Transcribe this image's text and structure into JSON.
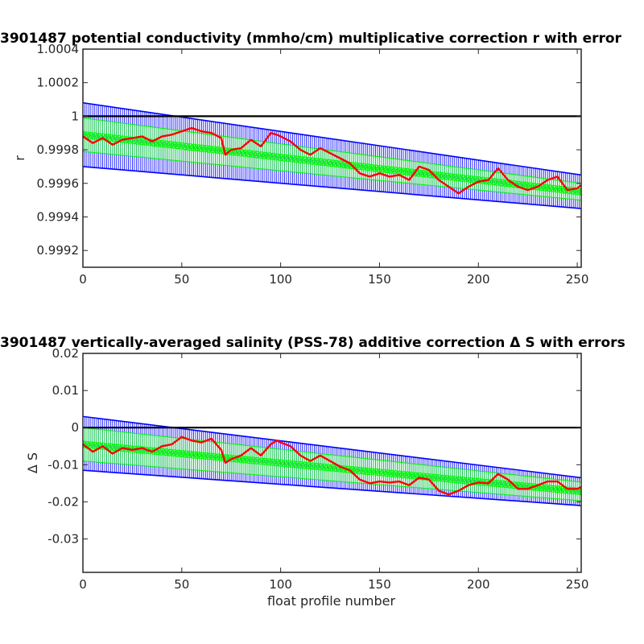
{
  "chart_data": [
    {
      "type": "line",
      "title": "3901487 potential conductivity (mmho/cm) multiplicative correction r with error",
      "xlabel": "",
      "ylabel": "r",
      "xlim": [
        0,
        252
      ],
      "ylim": [
        0.9991,
        1.0004
      ],
      "xticks": [
        0,
        50,
        100,
        150,
        200,
        250
      ],
      "xtick_labels": [
        "0",
        "50",
        "100",
        "150",
        "200",
        "250"
      ],
      "yticks": [
        0.9992,
        0.9994,
        0.9996,
        0.9998,
        1.0,
        1.0002,
        1.0004
      ],
      "ytick_labels": [
        "0.9992",
        "0.9994",
        "0.9996",
        "0.9998",
        "1",
        "1.0002",
        "1.0004"
      ],
      "reference_line": 1.0,
      "series": [
        {
          "role": "blue-error-band",
          "color": "#0000ff",
          "x_start": 0,
          "x_end": 252,
          "upper": [
            1.00008,
            0.99965
          ],
          "lower": [
            0.9997,
            0.99945
          ]
        },
        {
          "role": "green-fit-with-error",
          "color": "#00ff00",
          "x_start": 0,
          "x_end": 252,
          "center": [
            0.99989,
            0.99955
          ],
          "halfwidth": [
            0.0001,
            5e-05
          ]
        },
        {
          "role": "red-profile-correction",
          "color": "#ff0000",
          "x": [
            0,
            5,
            10,
            15,
            20,
            25,
            30,
            35,
            40,
            45,
            50,
            55,
            60,
            65,
            70,
            72,
            75,
            80,
            85,
            90,
            95,
            98,
            100,
            105,
            110,
            115,
            120,
            125,
            130,
            135,
            140,
            145,
            150,
            155,
            160,
            165,
            170,
            175,
            180,
            185,
            190,
            195,
            200,
            205,
            210,
            215,
            220,
            225,
            230,
            235,
            240,
            245,
            250,
            252
          ],
          "y": [
            0.99988,
            0.99984,
            0.99987,
            0.99983,
            0.99986,
            0.99987,
            0.99988,
            0.99985,
            0.99988,
            0.99989,
            0.99991,
            0.99993,
            0.99991,
            0.9999,
            0.99987,
            0.99977,
            0.9998,
            0.99981,
            0.99986,
            0.99982,
            0.9999,
            0.99989,
            0.99988,
            0.99985,
            0.9998,
            0.99977,
            0.99981,
            0.99978,
            0.99975,
            0.99972,
            0.99966,
            0.99964,
            0.99966,
            0.99964,
            0.99965,
            0.99962,
            0.9997,
            0.99968,
            0.99962,
            0.99958,
            0.99954,
            0.99958,
            0.99961,
            0.99962,
            0.99969,
            0.99962,
            0.99958,
            0.99956,
            0.99958,
            0.99962,
            0.99964,
            0.99956,
            0.99957,
            0.99959
          ]
        }
      ]
    },
    {
      "type": "line",
      "title": "3901487 vertically-averaged salinity (PSS-78) additive correction Δ S with errors",
      "xlabel": "float profile number",
      "ylabel": "Δ S",
      "xlim": [
        0,
        252
      ],
      "ylim": [
        -0.039,
        0.02
      ],
      "xticks": [
        0,
        50,
        100,
        150,
        200,
        250
      ],
      "xtick_labels": [
        "0",
        "50",
        "100",
        "150",
        "200",
        "250"
      ],
      "yticks": [
        -0.03,
        -0.02,
        -0.01,
        0,
        0.01,
        0.02
      ],
      "ytick_labels": [
        "-0.03",
        "-0.02",
        "-0.01",
        "0",
        "0.01",
        "0.02"
      ],
      "reference_line": 0,
      "series": [
        {
          "role": "blue-error-band",
          "color": "#0000ff",
          "x_start": 0,
          "x_end": 252,
          "upper": [
            0.003,
            -0.0135
          ],
          "lower": [
            -0.0115,
            -0.021
          ]
        },
        {
          "role": "green-fit-with-error",
          "color": "#00ff00",
          "x_start": 0,
          "x_end": 252,
          "center": [
            -0.0045,
            -0.0172
          ],
          "halfwidth": [
            0.0045,
            0.0025
          ]
        },
        {
          "role": "red-profile-correction",
          "color": "#ff0000",
          "x": [
            0,
            5,
            10,
            15,
            20,
            25,
            30,
            35,
            40,
            45,
            50,
            55,
            60,
            65,
            70,
            72,
            75,
            80,
            85,
            90,
            95,
            98,
            100,
            105,
            110,
            115,
            120,
            125,
            130,
            135,
            140,
            145,
            150,
            155,
            160,
            165,
            170,
            175,
            180,
            185,
            190,
            195,
            200,
            205,
            210,
            215,
            220,
            225,
            230,
            235,
            240,
            245,
            250,
            252
          ],
          "y": [
            -0.0045,
            -0.0065,
            -0.005,
            -0.007,
            -0.0055,
            -0.006,
            -0.0055,
            -0.0065,
            -0.005,
            -0.0045,
            -0.0025,
            -0.0035,
            -0.004,
            -0.003,
            -0.006,
            -0.0095,
            -0.0085,
            -0.0075,
            -0.0055,
            -0.0075,
            -0.0045,
            -0.0035,
            -0.004,
            -0.005,
            -0.0075,
            -0.009,
            -0.0075,
            -0.009,
            -0.0105,
            -0.0115,
            -0.014,
            -0.015,
            -0.0145,
            -0.0148,
            -0.0145,
            -0.0155,
            -0.0135,
            -0.014,
            -0.017,
            -0.018,
            -0.017,
            -0.0155,
            -0.0148,
            -0.015,
            -0.0125,
            -0.014,
            -0.0165,
            -0.0165,
            -0.0155,
            -0.0145,
            -0.0145,
            -0.0165,
            -0.0165,
            -0.016
          ]
        }
      ]
    }
  ]
}
